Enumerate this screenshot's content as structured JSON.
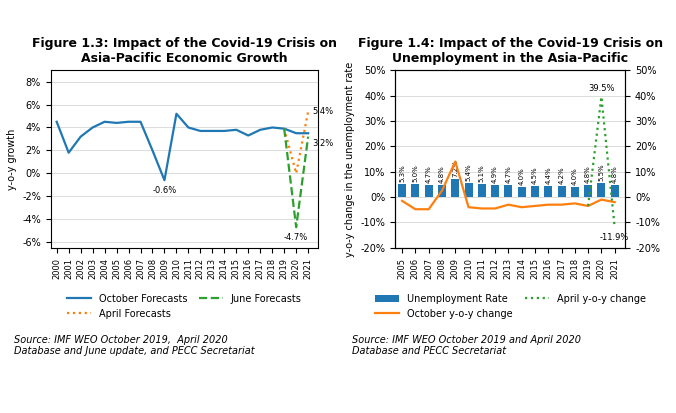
{
  "chart_data": [
    {
      "type": "line",
      "title": "Figure 1.3: Impact of the Covid-19 Crisis on\nAsia-Pacific Economic Growth",
      "ylabel": "y-o-y growth",
      "x": [
        2000,
        2001,
        2002,
        2003,
        2004,
        2005,
        2006,
        2007,
        2008,
        2009,
        2010,
        2011,
        2012,
        2013,
        2014,
        2015,
        2016,
        2017,
        2018,
        2019,
        2020,
        2021
      ],
      "series": [
        {
          "name": "October Forecasts",
          "line_style": "solid",
          "values": [
            4.5,
            1.8,
            3.2,
            4.0,
            4.5,
            4.4,
            4.5,
            4.5,
            2.0,
            -0.6,
            5.2,
            4.0,
            3.7,
            3.7,
            3.7,
            3.8,
            3.3,
            3.8,
            4.0,
            3.9,
            3.5,
            3.5
          ]
        },
        {
          "name": "April Forecasts",
          "line_style": "dotted",
          "values": [
            null,
            null,
            null,
            null,
            null,
            null,
            null,
            null,
            null,
            null,
            null,
            null,
            null,
            null,
            null,
            null,
            null,
            null,
            null,
            3.9,
            0.0,
            5.4
          ]
        },
        {
          "name": "June Forecasts",
          "line_style": "dashed",
          "values": [
            null,
            null,
            null,
            null,
            null,
            null,
            null,
            null,
            null,
            null,
            null,
            null,
            null,
            null,
            null,
            null,
            null,
            null,
            null,
            3.9,
            -4.7,
            3.2
          ]
        }
      ],
      "xlim": [
        1999.5,
        2021.8
      ],
      "xticks": [
        2000,
        2001,
        2002,
        2003,
        2004,
        2005,
        2006,
        2007,
        2008,
        2009,
        2010,
        2011,
        2012,
        2013,
        2014,
        2015,
        2016,
        2017,
        2018,
        2019,
        2020,
        2021
      ],
      "ylim": [
        -6.5,
        9.0
      ],
      "yticks": [
        {
          "value": -6,
          "label": "-6%"
        },
        {
          "value": -4,
          "label": "-4%"
        },
        {
          "value": -2,
          "label": "-2%"
        },
        {
          "value": 0,
          "label": "0%"
        },
        {
          "value": 2,
          "label": "2%"
        },
        {
          "value": 4,
          "label": "4%"
        },
        {
          "value": 6,
          "label": "6%"
        },
        {
          "value": 8,
          "label": "8%"
        }
      ],
      "grid": "y",
      "legend": "upper center",
      "annotations": [
        {
          "text": "-0.6%",
          "x": 2009,
          "y": -0.6
        },
        {
          "text": "-4.7%",
          "x": 2020,
          "y": -4.7
        },
        {
          "text": "3.2%",
          "x": 2021,
          "y": 3.2
        },
        {
          "text": "5.4%",
          "x": 2021,
          "y": 5.4
        }
      ],
      "source": "Source: IMF WEO October 2019,  April 2020\nDatabase and June update, and PECC Secretariat"
    },
    {
      "type": "bar",
      "title": "Figure 1.4: Impact of the Covid-19 Crisis on\nUnemployment in the Asia-Pacific",
      "ylabel": "y-o-y change in the unemployment rate",
      "x": [
        2005,
        2006,
        2007,
        2008,
        2009,
        2010,
        2011,
        2012,
        2013,
        2014,
        2015,
        2016,
        2017,
        2018,
        2019,
        2020,
        2021
      ],
      "series": [
        {
          "name": "Unemployment Rate",
          "type": "bar",
          "data_labels": true,
          "values": [
            5.3,
            5.0,
            4.7,
            4.8,
            7.2,
            5.4,
            5.1,
            4.9,
            4.7,
            4.0,
            4.5,
            4.4,
            4.2,
            4.0,
            4.8,
            5.5,
            4.8
          ],
          "value_labels": [
            "5.3%",
            "5.0%",
            "4.7%",
            "4.8%",
            "7.2%",
            "5.4%",
            "5.1%",
            "4.9%",
            "4.7%",
            "4.0%",
            "4.5%",
            "4.4%",
            "4.2%",
            "4.0%",
            "4.8%",
            "5.5%",
            "4.8%"
          ]
        },
        {
          "name": "October y-o-y change",
          "type": "line",
          "axis": "y2",
          "line_style": "solid",
          "values": [
            -1.5,
            -4.8,
            -4.8,
            2.5,
            14.0,
            -4.0,
            -4.5,
            -4.5,
            -3.0,
            -4.0,
            -3.5,
            -3.0,
            -3.0,
            -2.5,
            -3.5,
            -1.0,
            -2.0
          ]
        },
        {
          "name": "April y-o-y change",
          "type": "line",
          "axis": "y2",
          "line_style": "dotted",
          "values": [
            null,
            null,
            null,
            null,
            null,
            null,
            null,
            null,
            null,
            null,
            null,
            null,
            null,
            null,
            -3.5,
            39.5,
            -11.9
          ]
        }
      ],
      "xlim": [
        2004.5,
        2021.8
      ],
      "xticks": [
        2005,
        2006,
        2007,
        2008,
        2009,
        2010,
        2011,
        2012,
        2013,
        2014,
        2015,
        2016,
        2017,
        2018,
        2019,
        2020,
        2021
      ],
      "ylim": [
        -20,
        50
      ],
      "yticks": [
        {
          "value": -20,
          "label": "-20%"
        },
        {
          "value": -10,
          "label": "-10%"
        },
        {
          "value": 0,
          "label": "0%"
        },
        {
          "value": 10,
          "label": "10%"
        },
        {
          "value": 20,
          "label": "20%"
        },
        {
          "value": 30,
          "label": "30%"
        },
        {
          "value": 40,
          "label": "40%"
        },
        {
          "value": 50,
          "label": "50%"
        }
      ],
      "y2lim": [
        -20,
        50
      ],
      "y2ticks": [
        {
          "value": -20,
          "label": "-20%"
        },
        {
          "value": -10,
          "label": "-10%"
        },
        {
          "value": 0,
          "label": "0%"
        },
        {
          "value": 10,
          "label": "10%"
        },
        {
          "value": 20,
          "label": "20%"
        },
        {
          "value": 30,
          "label": "30%"
        },
        {
          "value": 40,
          "label": "40%"
        },
        {
          "value": 50,
          "label": "50%"
        }
      ],
      "grid": "y",
      "legend": "upper center",
      "annotations": [
        {
          "text": "39.5%",
          "x": 2020,
          "y": 39.5,
          "axis": "y2"
        },
        {
          "text": "-11.9%",
          "x": 2021,
          "y": -11.9,
          "axis": "y2"
        }
      ],
      "source": "Source: IMF WEO October 2019 and April 2020\nDatabase and PECC Secretariat"
    }
  ]
}
